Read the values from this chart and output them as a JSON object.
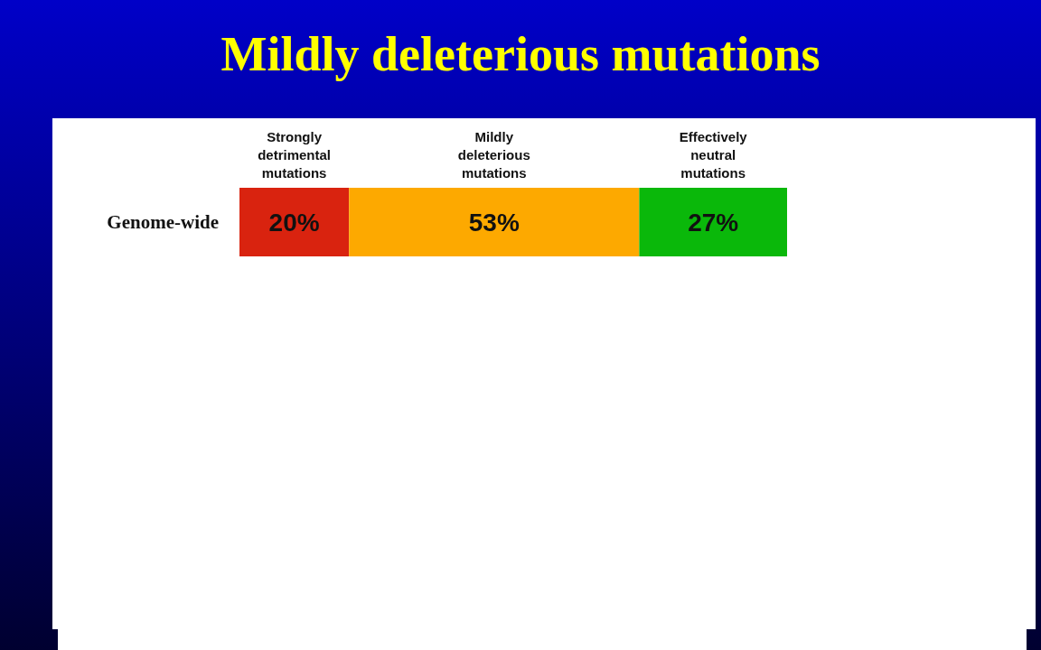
{
  "chart_data": {
    "type": "bar",
    "title": "Mildly deleterious mutations",
    "orientation": "horizontal",
    "stacked": true,
    "categories": [
      "Genome-wide"
    ],
    "xlim": [
      0,
      100
    ],
    "tick_labels": "y",
    "series": [
      {
        "name": "Strongly detrimental mutations",
        "color": "#d9230f",
        "values": [
          20
        ],
        "value_labels": [
          "20%"
        ]
      },
      {
        "name": "Mildly deleterious mutations",
        "color": "#fda900",
        "values": [
          53
        ],
        "value_labels": [
          "53%"
        ]
      },
      {
        "name": "Effectively neutral mutations",
        "color": "#0ab80a",
        "values": [
          27
        ],
        "value_labels": [
          "27%"
        ]
      }
    ]
  }
}
